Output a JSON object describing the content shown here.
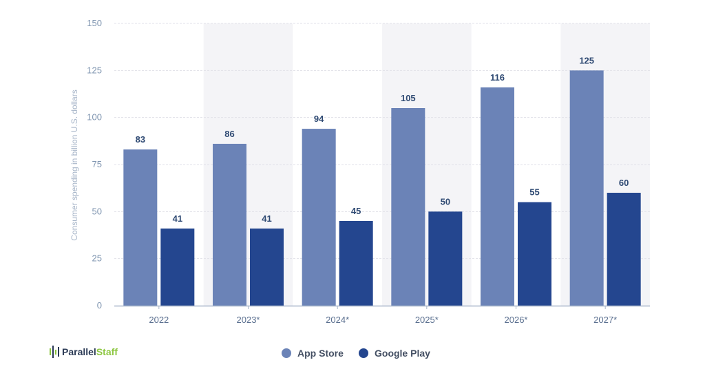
{
  "colors": {
    "app_store": "#6b83b7",
    "google_play": "#24468f",
    "band": "#f4f4f7",
    "grid": "#e1e1e8",
    "axis": "#a8b6c9",
    "logo_green": "#8cc63f",
    "logo_dark": "#2b3a55"
  },
  "logo": {
    "icon": "bar-signal-icon",
    "word_dark": "Parallel",
    "word_green": "Staff"
  },
  "chart_data": {
    "type": "bar",
    "title": "",
    "xlabel": "",
    "ylabel": "Consumer spending in billion U.S. dollars",
    "categories": [
      "2022",
      "2023*",
      "2024*",
      "2025*",
      "2026*",
      "2027*"
    ],
    "series": [
      {
        "name": "App Store",
        "values": [
          83,
          86,
          94,
          105,
          116,
          125
        ]
      },
      {
        "name": "Google Play",
        "values": [
          41,
          41,
          45,
          50,
          55,
          60
        ]
      }
    ],
    "ylim": [
      0,
      150
    ],
    "yticks": [
      0,
      25,
      50,
      75,
      100,
      125,
      150
    ],
    "grid": true,
    "legend_position": "bottom-center"
  }
}
